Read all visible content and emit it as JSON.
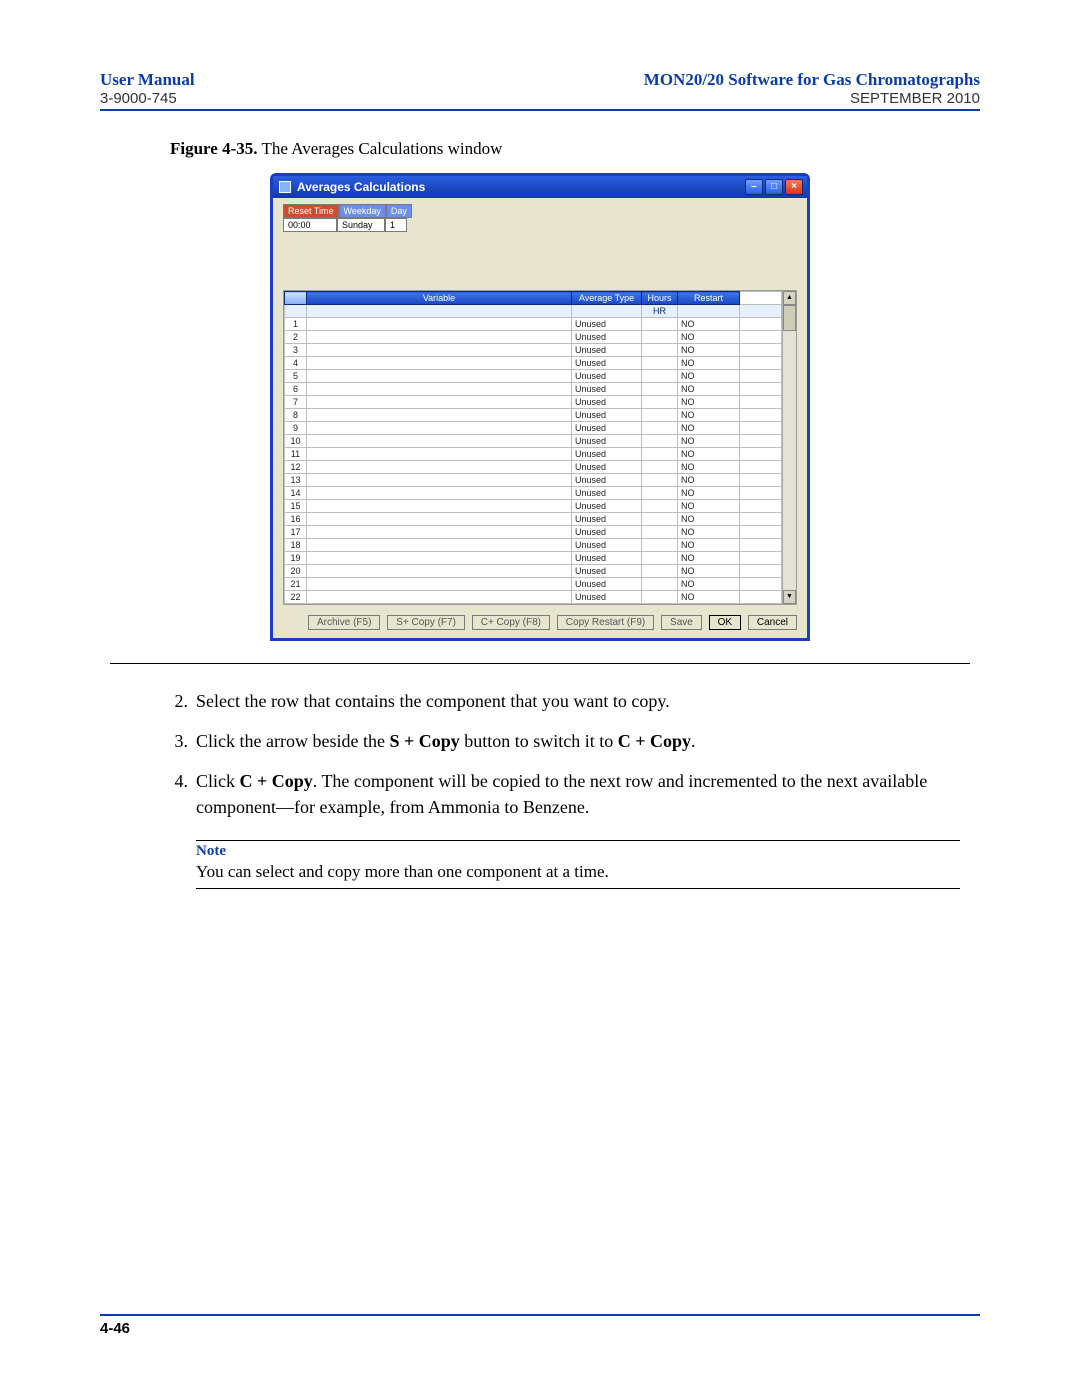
{
  "header": {
    "left": "User Manual",
    "right": "MON20/20 Software for Gas Chromatographs",
    "doc_number": "3-9000-745",
    "date": "SEPTEMBER 2010"
  },
  "figure": {
    "label": "Figure 4-35.",
    "caption": "The Averages Calculations window"
  },
  "window": {
    "title": "Averages Calculations",
    "controls": {
      "reset_time_label": "Reset Time",
      "reset_time_value": "00:00",
      "weekday_label": "Weekday",
      "weekday_value": "Sunday",
      "day_label": "Day",
      "day_value": "1"
    },
    "columns": [
      "",
      "Variable",
      "Average Type",
      "Hours",
      "Restart"
    ],
    "subheader_hours": "HR",
    "rows": [
      {
        "n": "1",
        "variable": "",
        "avgtype": "Unused",
        "hours": "",
        "restart": "NO"
      },
      {
        "n": "2",
        "variable": "",
        "avgtype": "Unused",
        "hours": "",
        "restart": "NO"
      },
      {
        "n": "3",
        "variable": "",
        "avgtype": "Unused",
        "hours": "",
        "restart": "NO"
      },
      {
        "n": "4",
        "variable": "",
        "avgtype": "Unused",
        "hours": "",
        "restart": "NO"
      },
      {
        "n": "5",
        "variable": "",
        "avgtype": "Unused",
        "hours": "",
        "restart": "NO"
      },
      {
        "n": "6",
        "variable": "",
        "avgtype": "Unused",
        "hours": "",
        "restart": "NO"
      },
      {
        "n": "7",
        "variable": "",
        "avgtype": "Unused",
        "hours": "",
        "restart": "NO"
      },
      {
        "n": "8",
        "variable": "",
        "avgtype": "Unused",
        "hours": "",
        "restart": "NO"
      },
      {
        "n": "9",
        "variable": "",
        "avgtype": "Unused",
        "hours": "",
        "restart": "NO"
      },
      {
        "n": "10",
        "variable": "",
        "avgtype": "Unused",
        "hours": "",
        "restart": "NO"
      },
      {
        "n": "11",
        "variable": "",
        "avgtype": "Unused",
        "hours": "",
        "restart": "NO"
      },
      {
        "n": "12",
        "variable": "",
        "avgtype": "Unused",
        "hours": "",
        "restart": "NO"
      },
      {
        "n": "13",
        "variable": "",
        "avgtype": "Unused",
        "hours": "",
        "restart": "NO"
      },
      {
        "n": "14",
        "variable": "",
        "avgtype": "Unused",
        "hours": "",
        "restart": "NO"
      },
      {
        "n": "15",
        "variable": "",
        "avgtype": "Unused",
        "hours": "",
        "restart": "NO"
      },
      {
        "n": "16",
        "variable": "",
        "avgtype": "Unused",
        "hours": "",
        "restart": "NO"
      },
      {
        "n": "17",
        "variable": "",
        "avgtype": "Unused",
        "hours": "",
        "restart": "NO"
      },
      {
        "n": "18",
        "variable": "",
        "avgtype": "Unused",
        "hours": "",
        "restart": "NO"
      },
      {
        "n": "19",
        "variable": "",
        "avgtype": "Unused",
        "hours": "",
        "restart": "NO"
      },
      {
        "n": "20",
        "variable": "",
        "avgtype": "Unused",
        "hours": "",
        "restart": "NO"
      },
      {
        "n": "21",
        "variable": "",
        "avgtype": "Unused",
        "hours": "",
        "restart": "NO"
      },
      {
        "n": "22",
        "variable": "",
        "avgtype": "Unused",
        "hours": "",
        "restart": "NO"
      }
    ],
    "buttons": {
      "archive": "Archive (F5)",
      "scopy": "S+ Copy (F7)",
      "ccopy": "C+ Copy (F8)",
      "copyrestart": "Copy Restart (F9)",
      "save": "Save",
      "ok": "OK",
      "cancel": "Cancel"
    }
  },
  "steps": [
    {
      "n": "2.",
      "text": "Select the row that contains the component that you want to copy."
    },
    {
      "n": "3.",
      "text_pre": "Click the arrow beside the ",
      "b1": "S + Copy",
      "text_mid": " button to switch it to ",
      "b2": "C + Copy",
      "text_post": "."
    },
    {
      "n": "4.",
      "text_pre": "Click ",
      "b1": "C + Copy",
      "text_mid": ". The component will be copied to the next row and incremented to the next available component—for example, from Ammonia to Benzene."
    }
  ],
  "note": {
    "label": "Note",
    "text": "You can select and copy more than one component at a time."
  },
  "footer": {
    "pagenum": "4-46"
  },
  "colors": {
    "accent": "#0a3da8",
    "titlebar_top": "#2a5fe0",
    "titlebar_bottom": "#1038a8",
    "window_bg": "#e8e5ce",
    "grid_header": "#1a46c8",
    "cyan_cell": "#20e8e8",
    "rownum_top": "#c8daff",
    "rownum_bottom": "#88acf8"
  }
}
